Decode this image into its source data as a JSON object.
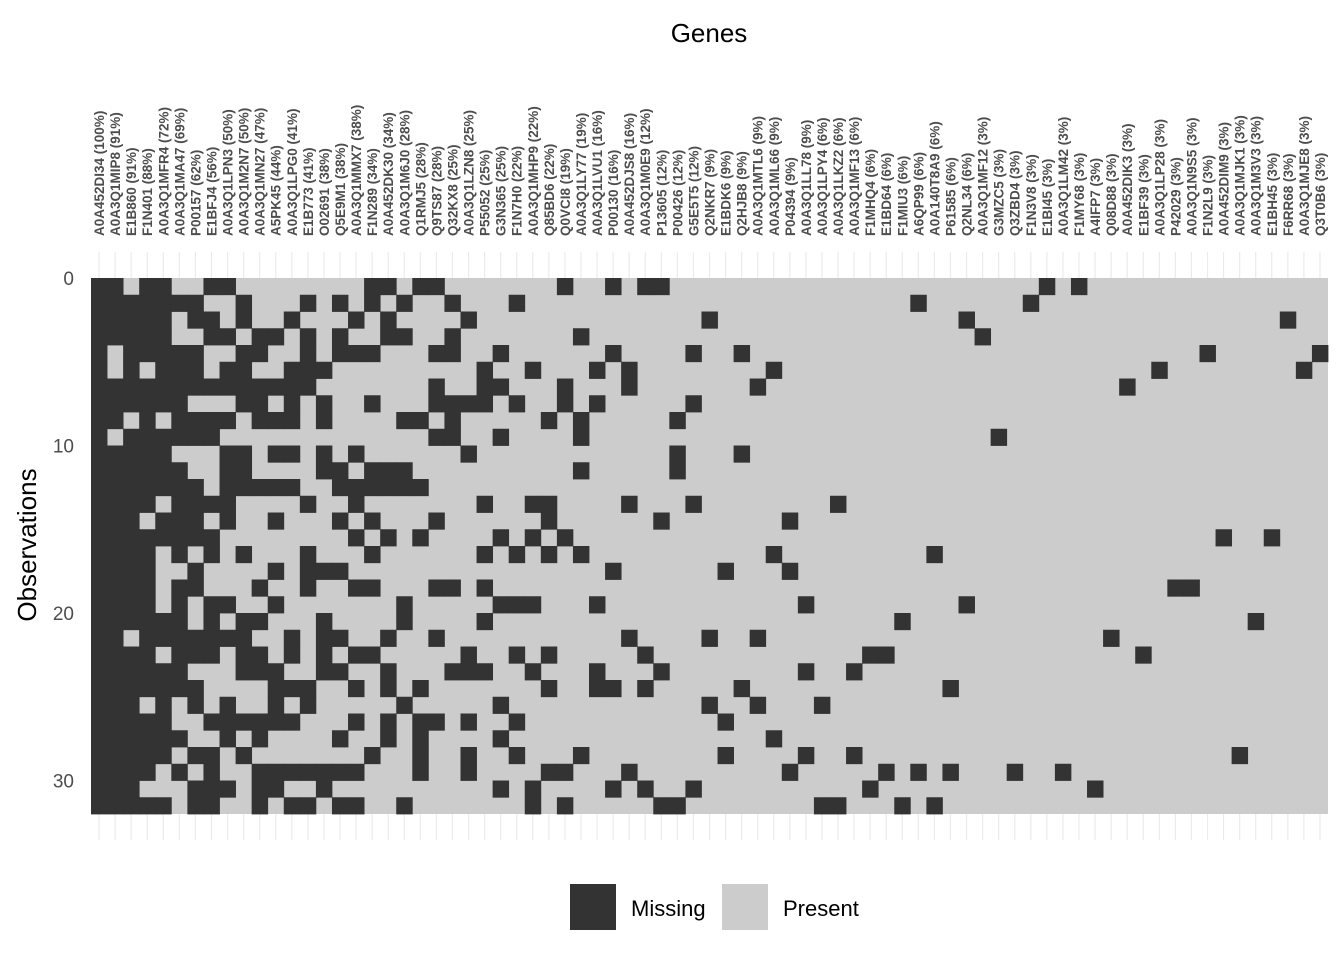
{
  "chart_data": {
    "type": "heatmap",
    "title": "",
    "xlabel": "Genes",
    "ylabel": "Observations",
    "yticks": [
      0,
      10,
      20,
      30
    ],
    "ylim": [
      0,
      32
    ],
    "n_observations": 32,
    "colors": {
      "Missing": "#333333",
      "Present": "#cccccc",
      "grid": "#ebebeb"
    },
    "legend": {
      "position": "bottom",
      "labels": [
        "Missing",
        "Present"
      ]
    },
    "genes": [
      "A0A452DI34 (100%)",
      "A0A3Q1MIP8 (91%)",
      "E1B860 (91%)",
      "F1N401 (88%)",
      "A0A3Q1MFR4 (72%)",
      "A0A3Q1MA47 (69%)",
      "P00157 (62%)",
      "E1BFJ4 (56%)",
      "A0A3Q1LPN3 (50%)",
      "A0A3Q1M2N7 (50%)",
      "A0A3Q1MN27 (47%)",
      "A5PK45 (44%)",
      "A0A3Q1LPG0 (41%)",
      "E1B773 (41%)",
      "O02691 (38%)",
      "Q5E9M1 (38%)",
      "A0A3Q1MMX7 (38%)",
      "F1N289 (34%)",
      "A0A452DK30 (34%)",
      "A0A3Q1M6J0 (28%)",
      "Q1RMJ5 (28%)",
      "Q9TS87 (28%)",
      "Q32KX8 (25%)",
      "A0A3Q1LZN8 (25%)",
      "P55052 (25%)",
      "G3N365 (25%)",
      "F1N7H0 (22%)",
      "A0A3Q1MHP9 (22%)",
      "Q85BD6 (22%)",
      "Q0VCI8 (19%)",
      "A0A3Q1LY77 (19%)",
      "A0A3Q1LVU1 (16%)",
      "P00130 (16%)",
      "A0A452DJS8 (16%)",
      "A0A3Q1M0E9 (12%)",
      "P13605 (12%)",
      "P00426 (12%)",
      "G5E5T5 (12%)",
      "Q2NKR7 (9%)",
      "E1BDK6 (9%)",
      "Q2HJB8 (9%)",
      "A0A3Q1MTL6 (9%)",
      "A0A3Q1ML66 (9%)",
      "P04394 (9%)",
      "A0A3Q1LL78 (9%)",
      "A0A3Q1LPY4 (6%)",
      "A0A3Q1LKZ2 (6%)",
      "A0A3Q1MF13 (6%)",
      "F1MHQ4 (6%)",
      "E1BD64 (6%)",
      "F1MIU3 (6%)",
      "A6QP99 (6%)",
      "A0A140T8A9 (6%)",
      "P61585 (6%)",
      "Q2NL34 (6%)",
      "A0A3Q1MF12 (3%)",
      "G3MZC5 (3%)",
      "Q3ZBD4 (3%)",
      "F1N3V8 (3%)",
      "E1BI45 (3%)",
      "A0A3Q1LM42 (3%)",
      "F1MY68 (3%)",
      "A4IFP7 (3%)",
      "Q08D88 (3%)",
      "A0A452DIK3 (3%)",
      "E1BF39 (3%)",
      "A0A3Q1LP28 (3%)",
      "P42029 (3%)",
      "A0A3Q1N9S5 (3%)",
      "F1N2L9 (3%)",
      "A0A452DIM9 (3%)",
      "A0A3Q1MJK1 (3%)",
      "A0A3Q1M3V3 (3%)",
      "E1BH45 (3%)",
      "F6RR68 (3%)",
      "A0A3Q1MJE8 (3%)",
      "Q3T0B6 (3%)"
    ]
  }
}
